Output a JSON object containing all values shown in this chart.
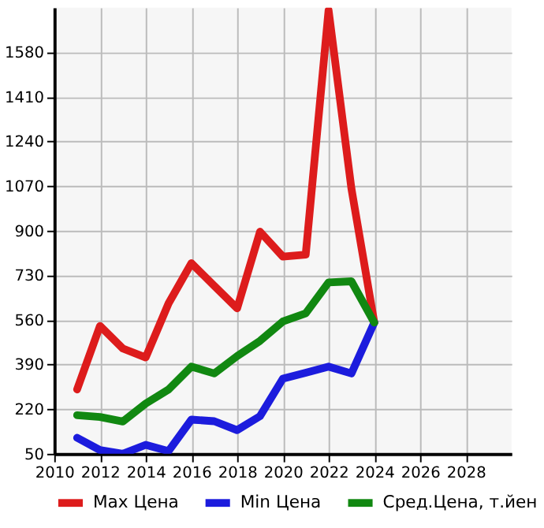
{
  "chart_data": {
    "type": "line",
    "x": [
      2011,
      2012,
      2013,
      2014,
      2015,
      2016,
      2017,
      2018,
      2019,
      2020,
      2021,
      2022,
      2023,
      2024
    ],
    "series": [
      {
        "name": "Max Цена",
        "color": "#dd1c1c",
        "values": [
          295,
          537,
          451,
          417,
          623,
          776,
          690,
          604,
          896,
          801,
          809,
          1740,
          1060,
          550
        ]
      },
      {
        "name": "Min Цена",
        "color": "#1c1cdd",
        "values": [
          111,
          64,
          50,
          84,
          60,
          180,
          174,
          140,
          193,
          336,
          359,
          382,
          356,
          550
        ]
      },
      {
        "name": "Сред.Цена, т.йен",
        "color": "#118811",
        "values": [
          197,
          190,
          173,
          241,
          295,
          382,
          356,
          422,
          480,
          554,
          585,
          703,
          707,
          550
        ]
      }
    ],
    "xlim": [
      2010,
      2030
    ],
    "xticks": [
      2010,
      2012,
      2014,
      2016,
      2018,
      2020,
      2022,
      2024,
      2026,
      2028
    ],
    "ylim": [
      50,
      1750
    ],
    "yticks": [
      50,
      220,
      390,
      560,
      730,
      900,
      1070,
      1240,
      1410,
      1580
    ],
    "grid": true,
    "legend": "bottom",
    "line_style": "solid",
    "marker": "none"
  }
}
